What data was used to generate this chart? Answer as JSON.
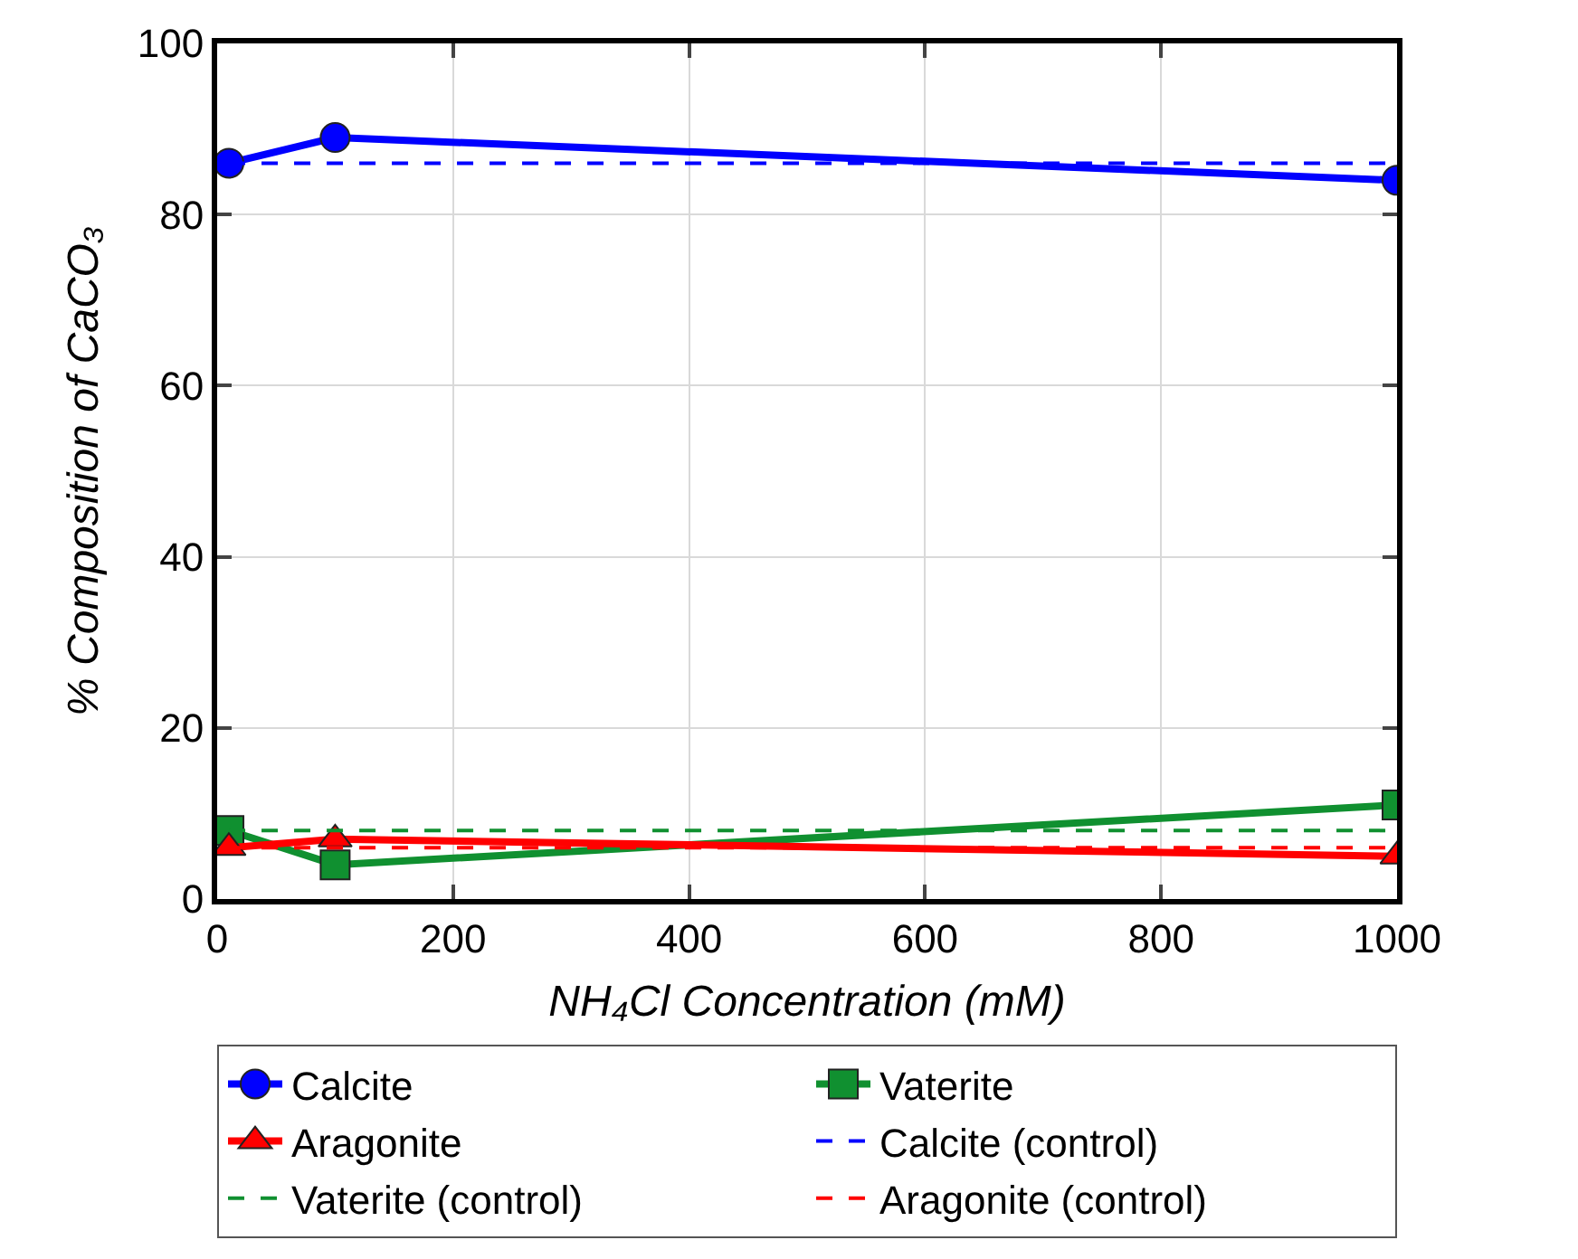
{
  "chart_data": {
    "type": "line",
    "xlabel": "NH₄Cl Concentration (mM)",
    "ylabel": "% Composition of CaCO₃",
    "xlim": [
      0,
      1000
    ],
    "ylim": [
      0,
      100
    ],
    "xticks": [
      0,
      200,
      400,
      600,
      800,
      1000
    ],
    "yticks": [
      0,
      20,
      40,
      60,
      80,
      100
    ],
    "grid": true,
    "legend": "bottom",
    "series": [
      {
        "name": "Calcite",
        "color": "#0000ff",
        "x": [
          10,
          100,
          1000
        ],
        "values": [
          86,
          89,
          84
        ],
        "marker": "circle",
        "line_style": "solid"
      },
      {
        "name": "Vaterite",
        "color": "#109030",
        "x": [
          10,
          100,
          1000
        ],
        "values": [
          8,
          4,
          11
        ],
        "marker": "square",
        "line_style": "solid"
      },
      {
        "name": "Aragonite",
        "color": "#ff0000",
        "x": [
          10,
          100,
          1000
        ],
        "values": [
          6,
          7,
          5
        ],
        "marker": "triangle",
        "line_style": "solid"
      },
      {
        "name": "Calcite (control)",
        "color": "#0000ff",
        "x": [
          10,
          1000
        ],
        "values": [
          86,
          86
        ],
        "marker": "none",
        "line_style": "dashed"
      },
      {
        "name": "Vaterite (control)",
        "color": "#109030",
        "x": [
          10,
          1000
        ],
        "values": [
          8,
          8
        ],
        "marker": "none",
        "line_style": "dashed"
      },
      {
        "name": "Aragonite (control)",
        "color": "#ff0000",
        "x": [
          10,
          1000
        ],
        "values": [
          6,
          6
        ],
        "marker": "none",
        "line_style": "dashed"
      }
    ]
  }
}
